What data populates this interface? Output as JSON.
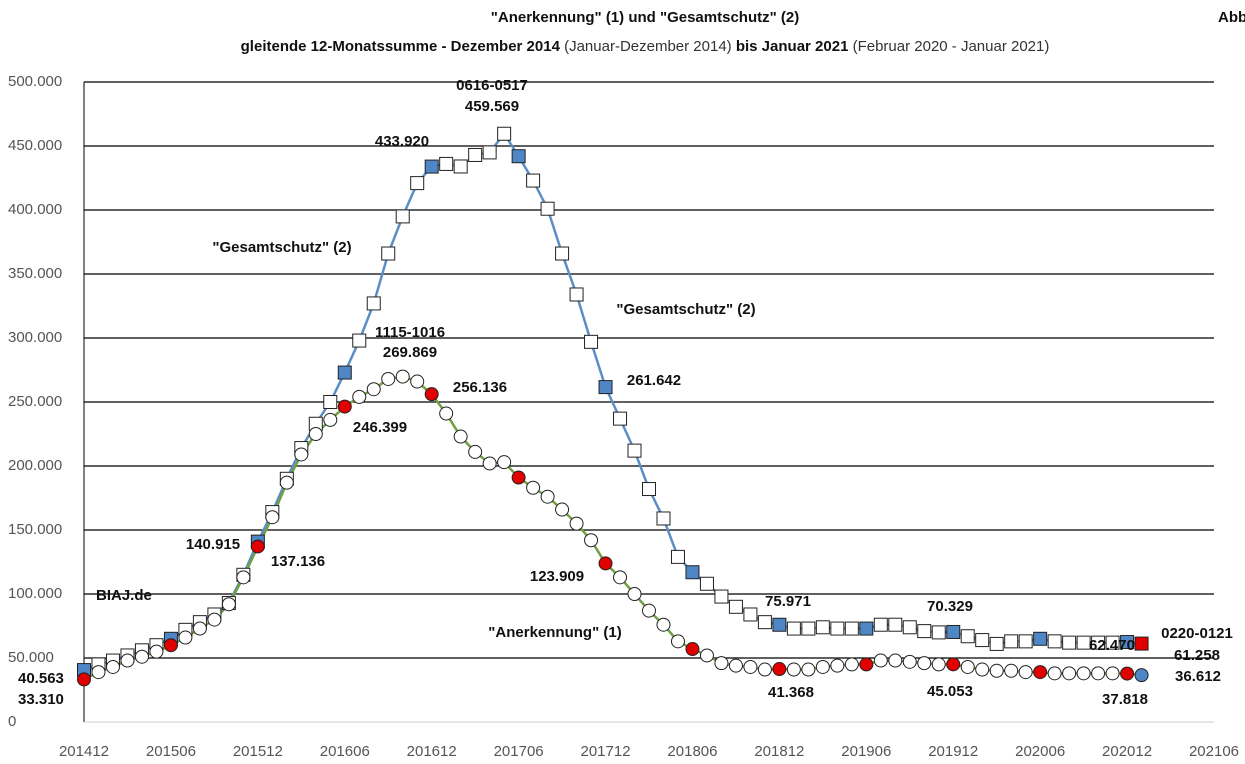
{
  "chart_data": {
    "type": "line",
    "title": "\"Anerkennung\" (1) und \"Gesamtschutz\" (2)",
    "subtitle": [
      {
        "text": "gleitende 12-Monatssumme - Dezember 2014 ",
        "bold": true
      },
      {
        "text": "(Januar-Dezember 2014) ",
        "bold": false
      },
      {
        "text": "bis Januar 2021 ",
        "bold": true
      },
      {
        "text": "(Februar 2020 - Januar 2021)",
        "bold": false
      }
    ],
    "corner_label": "Abb",
    "source": "BIAJ.de",
    "source_color": "#c00000",
    "annotations": [
      "0616-0517",
      "1115-1016",
      "0220-0121"
    ],
    "categories": [
      "201412",
      null,
      null,
      null,
      null,
      null,
      "201506",
      null,
      null,
      null,
      null,
      null,
      "201512",
      null,
      null,
      null,
      null,
      null,
      "201606",
      null,
      null,
      null,
      null,
      null,
      "201612",
      null,
      null,
      null,
      null,
      null,
      "201706",
      null,
      null,
      null,
      null,
      null,
      "201712",
      null,
      null,
      null,
      null,
      null,
      "201806",
      null,
      null,
      null,
      null,
      null,
      "201812",
      null,
      null,
      null,
      null,
      null,
      "201906",
      null,
      null,
      null,
      null,
      null,
      "201912",
      null,
      null,
      null,
      null,
      null,
      "202006",
      null,
      null,
      null,
      null,
      null,
      "202012",
      null,
      null,
      null,
      null,
      null,
      "202106"
    ],
    "ylim": [
      0,
      500000
    ],
    "yticks": [
      0,
      {
        "value": 50000,
        "label": "50.000"
      },
      {
        "value": 100000,
        "label": "100.000"
      },
      {
        "value": 150000,
        "label": "150.000"
      },
      {
        "value": 200000,
        "label": "200.000"
      },
      {
        "value": 250000,
        "label": "250.000"
      },
      {
        "value": 300000,
        "label": "300.000"
      },
      {
        "value": 350000,
        "label": "350.000"
      },
      {
        "value": 400000,
        "label": "400.000"
      },
      {
        "value": 450000,
        "label": "450.000"
      },
      {
        "value": 500000,
        "label": "500.000"
      }
    ],
    "grid": true,
    "series": [
      {
        "name": "\"Gesamtschutz\" (2)",
        "color": "#5b8ec4",
        "marker": "square",
        "highlight_color": "#4f86c6",
        "last_color": "#e00000",
        "values": [
          40563,
          45000,
          48000,
          52000,
          56000,
          60000,
          65000,
          72000,
          78000,
          84000,
          93000,
          115000,
          140915,
          164000,
          190000,
          214000,
          233000,
          250000,
          273000,
          298000,
          327000,
          366000,
          395000,
          421000,
          433920,
          436000,
          434000,
          443000,
          445000,
          459569,
          442000,
          423000,
          401000,
          366000,
          334000,
          297000,
          261642,
          237000,
          212000,
          182000,
          159000,
          129000,
          117000,
          108000,
          98000,
          90000,
          84000,
          78000,
          75971,
          73000,
          73000,
          74000,
          73000,
          73000,
          73000,
          76000,
          76000,
          74000,
          71000,
          70000,
          70329,
          67000,
          64000,
          61000,
          63000,
          63000,
          65000,
          63000,
          62000,
          62000,
          62000,
          62000,
          62470,
          61258,
          null,
          null,
          null,
          null,
          null
        ],
        "value_labels": [
          "40.563",
          null,
          null,
          null,
          null,
          null,
          null,
          null,
          null,
          null,
          null,
          null,
          "140.915",
          null,
          null,
          null,
          null,
          null,
          null,
          null,
          null,
          null,
          null,
          null,
          "433.920",
          null,
          null,
          null,
          null,
          "459.569",
          null,
          null,
          null,
          null,
          null,
          null,
          "261.642",
          null,
          null,
          null,
          null,
          null,
          null,
          null,
          null,
          null,
          null,
          null,
          "75.971",
          null,
          null,
          null,
          null,
          null,
          null,
          null,
          null,
          null,
          null,
          null,
          "70.329",
          null,
          null,
          null,
          null,
          null,
          null,
          null,
          null,
          null,
          null,
          null,
          "62.470",
          "61.258",
          null,
          null,
          null,
          null,
          null
        ]
      },
      {
        "name": "\"Anerkennung\" (1)",
        "color": "#70a043",
        "marker": "circle",
        "highlight_color": "#e00000",
        "last_color": "#4f86c6",
        "values": [
          33310,
          39000,
          43000,
          48000,
          51000,
          55000,
          60000,
          66000,
          73000,
          80000,
          92000,
          113000,
          137136,
          160000,
          187000,
          209000,
          225000,
          236000,
          246399,
          254000,
          260000,
          268000,
          269869,
          266000,
          256136,
          241000,
          223000,
          211000,
          202000,
          203000,
          191000,
          183000,
          176000,
          166000,
          155000,
          142000,
          123909,
          113000,
          100000,
          87000,
          76000,
          63000,
          57000,
          52000,
          46000,
          44000,
          43000,
          41000,
          41368,
          41000,
          41000,
          43000,
          44000,
          45000,
          45000,
          48000,
          48000,
          47000,
          46000,
          45000,
          45053,
          43000,
          41000,
          40000,
          40000,
          39000,
          39000,
          38000,
          38000,
          38000,
          38000,
          38000,
          37818,
          36612,
          null,
          null,
          null,
          null,
          null
        ],
        "value_labels": [
          "33.310",
          null,
          null,
          null,
          null,
          null,
          null,
          null,
          null,
          null,
          null,
          null,
          "137.136",
          null,
          null,
          null,
          null,
          null,
          "246.399",
          null,
          null,
          null,
          "269.869",
          null,
          "256.136",
          null,
          null,
          null,
          null,
          null,
          null,
          null,
          null,
          null,
          null,
          null,
          "123.909",
          null,
          null,
          null,
          null,
          null,
          null,
          null,
          null,
          null,
          null,
          null,
          "41.368",
          null,
          null,
          null,
          null,
          null,
          null,
          null,
          null,
          null,
          null,
          null,
          "45.053",
          null,
          null,
          null,
          null,
          null,
          null,
          null,
          null,
          null,
          null,
          null,
          "37.818",
          "36.612",
          null,
          null,
          null,
          null,
          null
        ]
      }
    ]
  }
}
